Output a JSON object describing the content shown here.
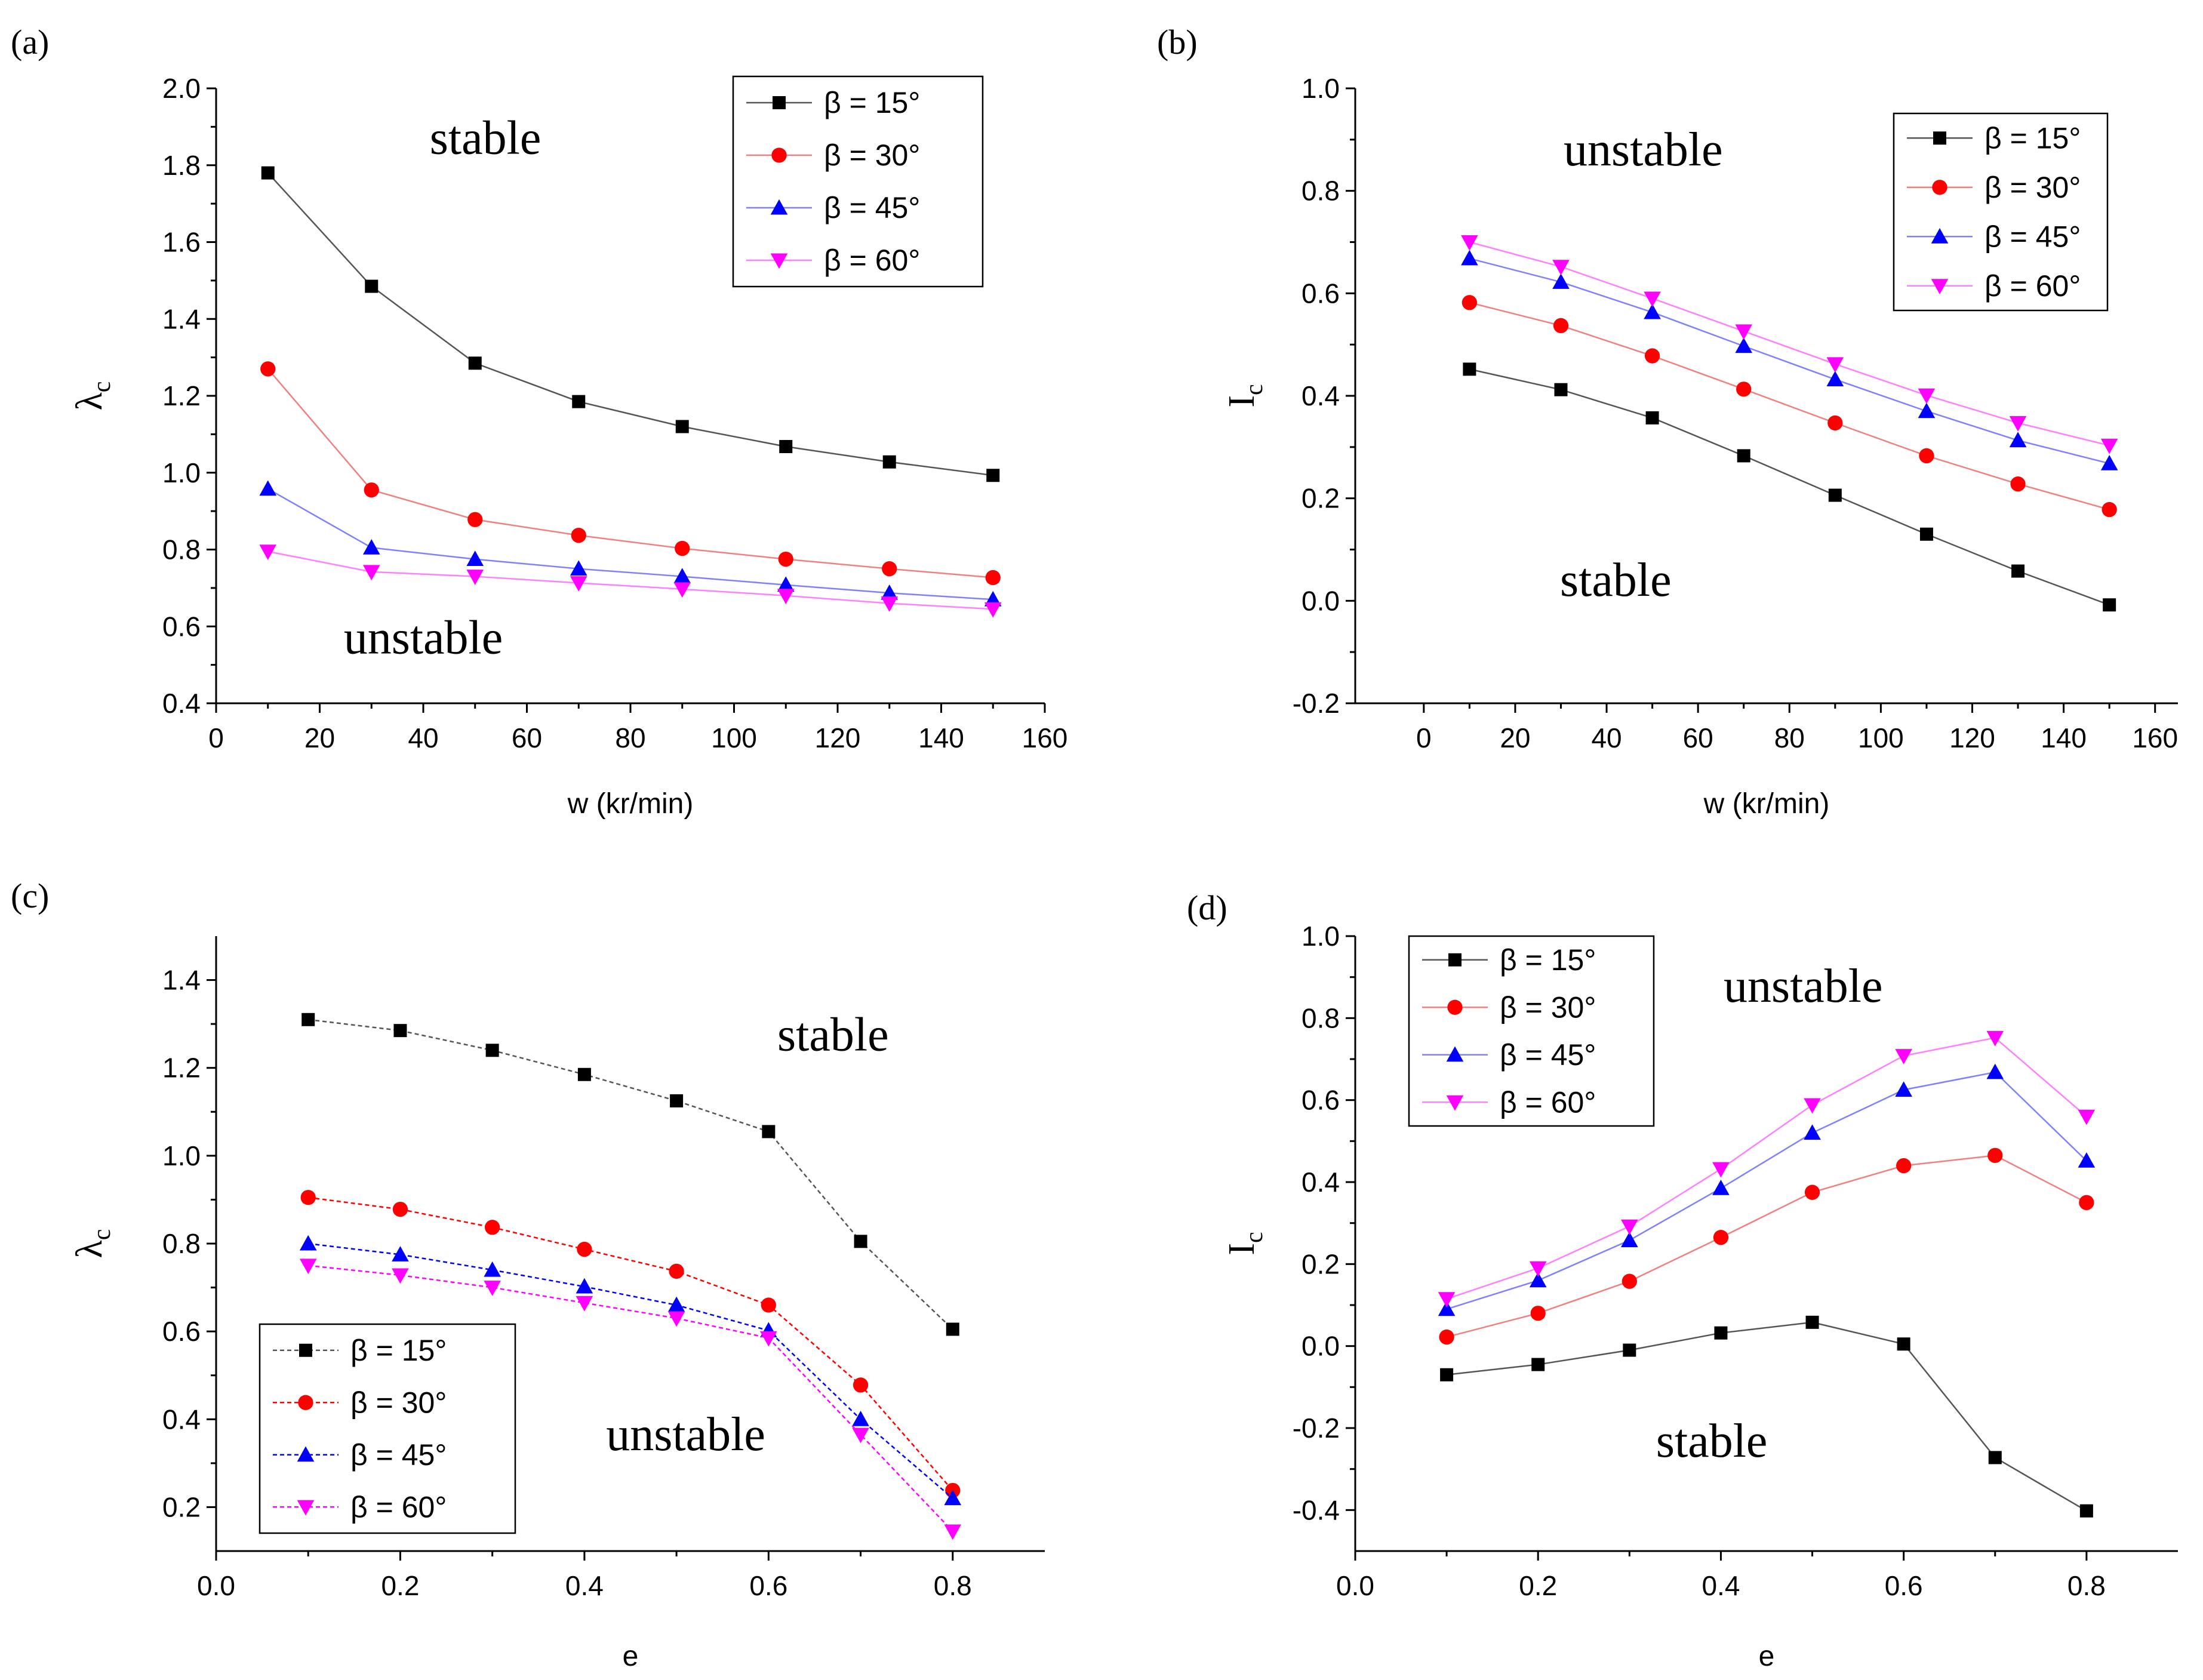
{
  "chart_data": [
    {
      "panel_label": "(a)",
      "type": "line",
      "xlabel": "w (kr/min)",
      "ylabel": "λ",
      "ylabel_sub": "c",
      "xlim": [
        0,
        160
      ],
      "ylim": [
        0.4,
        2.0
      ],
      "xticks": [
        0,
        20,
        40,
        60,
        80,
        100,
        120,
        140,
        160
      ],
      "yticks": [
        0.4,
        0.6,
        0.8,
        1.0,
        1.2,
        1.4,
        1.6,
        1.8,
        2.0
      ],
      "xtick_labels": [
        "0",
        "20",
        "40",
        "60",
        "80",
        "100",
        "120",
        "140",
        "160"
      ],
      "ytick_labels": [
        "0.4",
        "0.6",
        "0.8",
        "1.0",
        "1.2",
        "1.4",
        "1.6",
        "1.8",
        "2.0"
      ],
      "legend_position": "top-right",
      "regions": [
        {
          "text": "stable",
          "x": 52,
          "y": 1.83
        },
        {
          "text": "unstable",
          "x": 40,
          "y": 0.53
        }
      ],
      "x": [
        10,
        30,
        50,
        70,
        90,
        110,
        130,
        150
      ],
      "series": [
        {
          "name": "β = 15°",
          "color": "#000000",
          "line_color": "#555555",
          "marker": "square",
          "dashed": false,
          "values": [
            1.78,
            1.485,
            1.285,
            1.185,
            1.12,
            1.068,
            1.028,
            0.993
          ]
        },
        {
          "name": "β = 30°",
          "color": "#ff0000",
          "line_color": "#f08080",
          "marker": "circle",
          "dashed": false,
          "values": [
            1.27,
            0.955,
            0.878,
            0.837,
            0.803,
            0.775,
            0.75,
            0.727
          ]
        },
        {
          "name": "β = 45°",
          "color": "#0000ff",
          "line_color": "#8080ff",
          "marker": "triangle-up",
          "dashed": false,
          "values": [
            0.958,
            0.805,
            0.775,
            0.75,
            0.73,
            0.708,
            0.687,
            0.67
          ]
        },
        {
          "name": "β = 60°",
          "color": "#ff00ff",
          "line_color": "#ff80ff",
          "marker": "triangle-down",
          "dashed": false,
          "values": [
            0.795,
            0.742,
            0.73,
            0.713,
            0.697,
            0.68,
            0.66,
            0.645
          ]
        }
      ]
    },
    {
      "panel_label": "(b)",
      "type": "line",
      "xlabel": "w (kr/min)",
      "ylabel": "I",
      "ylabel_sub": "c",
      "xlim": [
        -15,
        165
      ],
      "ylim": [
        -0.2,
        1.0
      ],
      "xticks": [
        0,
        20,
        40,
        60,
        80,
        100,
        120,
        140,
        160
      ],
      "yticks": [
        -0.2,
        0.0,
        0.2,
        0.4,
        0.6,
        0.8,
        1.0
      ],
      "xtick_labels": [
        "0",
        "20",
        "40",
        "60",
        "80",
        "100",
        "120",
        "140",
        "160"
      ],
      "ytick_labels": [
        "-0.2",
        "0.0",
        "0.2",
        "0.4",
        "0.6",
        "0.8",
        "1.0"
      ],
      "legend_position": "top-right",
      "regions": [
        {
          "text": "unstable",
          "x": 48,
          "y": 0.85
        },
        {
          "text": "stable",
          "x": 42,
          "y": 0.01
        }
      ],
      "x": [
        10,
        30,
        50,
        70,
        90,
        110,
        130,
        150
      ],
      "series": [
        {
          "name": "β = 15°",
          "color": "#000000",
          "line_color": "#555555",
          "marker": "square",
          "dashed": false,
          "values": [
            0.452,
            0.412,
            0.357,
            0.283,
            0.206,
            0.13,
            0.058,
            -0.008
          ]
        },
        {
          "name": "β = 30°",
          "color": "#ff0000",
          "line_color": "#f08080",
          "marker": "circle",
          "dashed": false,
          "values": [
            0.582,
            0.537,
            0.478,
            0.413,
            0.347,
            0.283,
            0.228,
            0.178
          ]
        },
        {
          "name": "β = 45°",
          "color": "#0000ff",
          "line_color": "#8080ff",
          "marker": "triangle-up",
          "dashed": false,
          "values": [
            0.668,
            0.622,
            0.563,
            0.497,
            0.432,
            0.37,
            0.313,
            0.268
          ]
        },
        {
          "name": "β = 60°",
          "color": "#ff00ff",
          "line_color": "#ff80ff",
          "marker": "triangle-down",
          "dashed": false,
          "values": [
            0.7,
            0.652,
            0.59,
            0.526,
            0.462,
            0.401,
            0.347,
            0.303
          ]
        }
      ]
    },
    {
      "panel_label": "(c)",
      "type": "line",
      "xlabel": "e",
      "ylabel": "λ",
      "ylabel_sub": "c",
      "xlim": [
        0.0,
        0.9
      ],
      "ylim": [
        0.1,
        1.5
      ],
      "xticks": [
        0.0,
        0.2,
        0.4,
        0.6,
        0.8
      ],
      "yticks": [
        0.2,
        0.4,
        0.6,
        0.8,
        1.0,
        1.2,
        1.4
      ],
      "xtick_labels": [
        "0.0",
        "0.2",
        "0.4",
        "0.6",
        "0.8"
      ],
      "ytick_labels": [
        "0.2",
        "0.4",
        "0.6",
        "0.8",
        "1.0",
        "1.2",
        "1.4"
      ],
      "legend_position": "bottom-left",
      "regions": [
        {
          "text": "stable",
          "x": 0.67,
          "y": 1.24
        },
        {
          "text": "unstable",
          "x": 0.51,
          "y": 0.33
        }
      ],
      "x": [
        0.1,
        0.2,
        0.3,
        0.4,
        0.5,
        0.6,
        0.7,
        0.8
      ],
      "series": [
        {
          "name": "β = 15°",
          "color": "#000000",
          "line_color": "#555555",
          "marker": "square",
          "dashed": true,
          "values": [
            1.31,
            1.285,
            1.24,
            1.185,
            1.125,
            1.055,
            0.805,
            0.605
          ]
        },
        {
          "name": "β = 30°",
          "color": "#ff0000",
          "line_color": "#ff0000",
          "marker": "circle",
          "dashed": true,
          "values": [
            0.905,
            0.878,
            0.837,
            0.787,
            0.737,
            0.66,
            0.478,
            0.238
          ]
        },
        {
          "name": "β = 45°",
          "color": "#0000ff",
          "line_color": "#0000ff",
          "marker": "triangle-up",
          "dashed": true,
          "values": [
            0.8,
            0.775,
            0.74,
            0.702,
            0.66,
            0.602,
            0.4,
            0.22
          ]
        },
        {
          "name": "β = 60°",
          "color": "#ff00ff",
          "line_color": "#ff00ff",
          "marker": "triangle-down",
          "dashed": true,
          "values": [
            0.75,
            0.728,
            0.7,
            0.665,
            0.63,
            0.585,
            0.365,
            0.145
          ]
        }
      ]
    },
    {
      "panel_label": "(d)",
      "type": "line",
      "xlabel": "e",
      "ylabel": "I",
      "ylabel_sub": "c",
      "xlim": [
        0.0,
        0.9
      ],
      "ylim": [
        -0.5,
        1.0
      ],
      "xticks": [
        0.0,
        0.2,
        0.4,
        0.6,
        0.8
      ],
      "yticks": [
        -0.4,
        -0.2,
        0.0,
        0.2,
        0.4,
        0.6,
        0.8,
        1.0
      ],
      "xtick_labels": [
        "0.0",
        "0.2",
        "0.4",
        "0.6",
        "0.8"
      ],
      "ytick_labels": [
        "-0.4",
        "-0.2",
        "0.0",
        "0.2",
        "0.4",
        "0.6",
        "0.8",
        "1.0"
      ],
      "legend_position": "top-left",
      "regions": [
        {
          "text": "unstable",
          "x": 0.49,
          "y": 0.84
        },
        {
          "text": "stable",
          "x": 0.39,
          "y": -0.27
        }
      ],
      "x": [
        0.1,
        0.2,
        0.3,
        0.4,
        0.5,
        0.6,
        0.7,
        0.8
      ],
      "series": [
        {
          "name": "β = 15°",
          "color": "#000000",
          "line_color": "#555555",
          "marker": "square",
          "dashed": false,
          "values": [
            -0.07,
            -0.045,
            -0.01,
            0.032,
            0.058,
            0.005,
            -0.272,
            -0.402
          ]
        },
        {
          "name": "β = 30°",
          "color": "#ff0000",
          "line_color": "#f08080",
          "marker": "circle",
          "dashed": false,
          "values": [
            0.022,
            0.08,
            0.158,
            0.265,
            0.375,
            0.44,
            0.465,
            0.35
          ]
        },
        {
          "name": "β = 45°",
          "color": "#0000ff",
          "line_color": "#8080ff",
          "marker": "triangle-up",
          "dashed": false,
          "values": [
            0.09,
            0.16,
            0.258,
            0.385,
            0.52,
            0.625,
            0.668,
            0.452
          ]
        },
        {
          "name": "β = 60°",
          "color": "#ff00ff",
          "line_color": "#ff80ff",
          "marker": "triangle-down",
          "dashed": false,
          "values": [
            0.115,
            0.19,
            0.292,
            0.432,
            0.588,
            0.708,
            0.752,
            0.56
          ]
        }
      ]
    }
  ]
}
